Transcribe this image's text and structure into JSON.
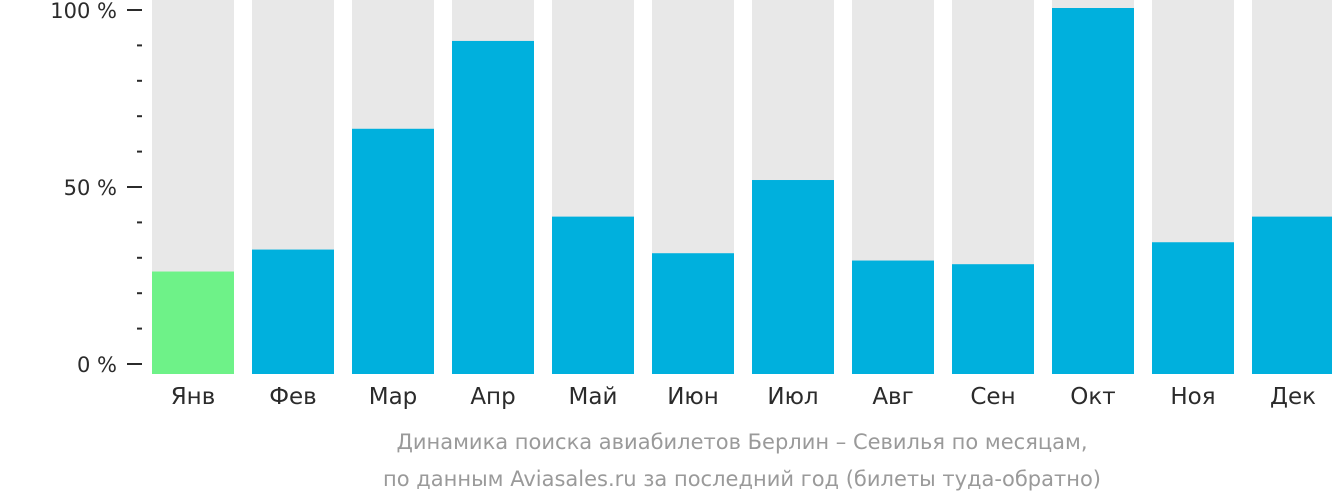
{
  "chart_data": {
    "type": "bar",
    "categories": [
      "Янв",
      "Фев",
      "Мар",
      "Апр",
      "Май",
      "Июн",
      "Июл",
      "Авг",
      "Сен",
      "Окт",
      "Ноя",
      "Дек"
    ],
    "values": [
      28,
      34,
      67,
      91,
      43,
      33,
      53,
      31,
      30,
      100,
      36,
      43
    ],
    "ylim": [
      0,
      100
    ],
    "yticks": [
      {
        "value": 0,
        "label": "0 %"
      },
      {
        "value": 50,
        "label": "50 %"
      },
      {
        "value": 100,
        "label": "100 %"
      }
    ],
    "minor_tick_step": 10,
    "grid": false,
    "highlight_index": 0,
    "colors": {
      "bar": "#00b0dd",
      "highlight": "#6ef288",
      "background_bar": "#e8e8e8",
      "axis": "#2b2b2b"
    }
  },
  "caption": {
    "line1": "Динамика поиска авиабилетов Берлин – Севилья по месяцам,",
    "line2": "по данным Aviasales.ru за последний год (билеты туда-обратно)"
  }
}
